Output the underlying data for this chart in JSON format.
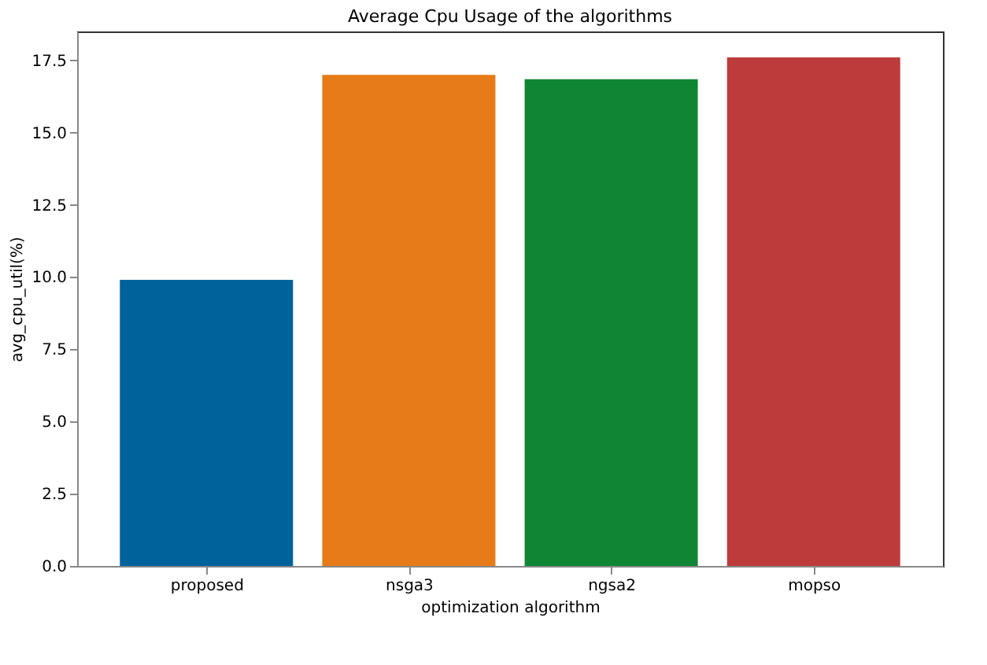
{
  "chart_data": {
    "type": "bar",
    "title": "Average Cpu Usage of the algorithms",
    "xlabel": "optimization algorithm",
    "ylabel": "avg_cpu_util(%)",
    "categories": [
      "proposed",
      "nsga3",
      "ngsa2",
      "mopso"
    ],
    "values": [
      9.9,
      17.0,
      16.85,
      17.6
    ],
    "colors": [
      "#00629b",
      "#e67b17",
      "#108634",
      "#be3b3b"
    ],
    "ylim": [
      0,
      18.5
    ],
    "yticks": [
      {
        "value": 0,
        "label": "0.0"
      },
      {
        "value": 2.5,
        "label": "2.5"
      },
      {
        "value": 5,
        "label": "5.0"
      },
      {
        "value": 7.5,
        "label": "7.5"
      },
      {
        "value": 10,
        "label": "10.0"
      },
      {
        "value": 12.5,
        "label": "12.5"
      },
      {
        "value": 15,
        "label": "15.0"
      },
      {
        "value": 17.5,
        "label": "17.5"
      }
    ],
    "grid": false
  }
}
